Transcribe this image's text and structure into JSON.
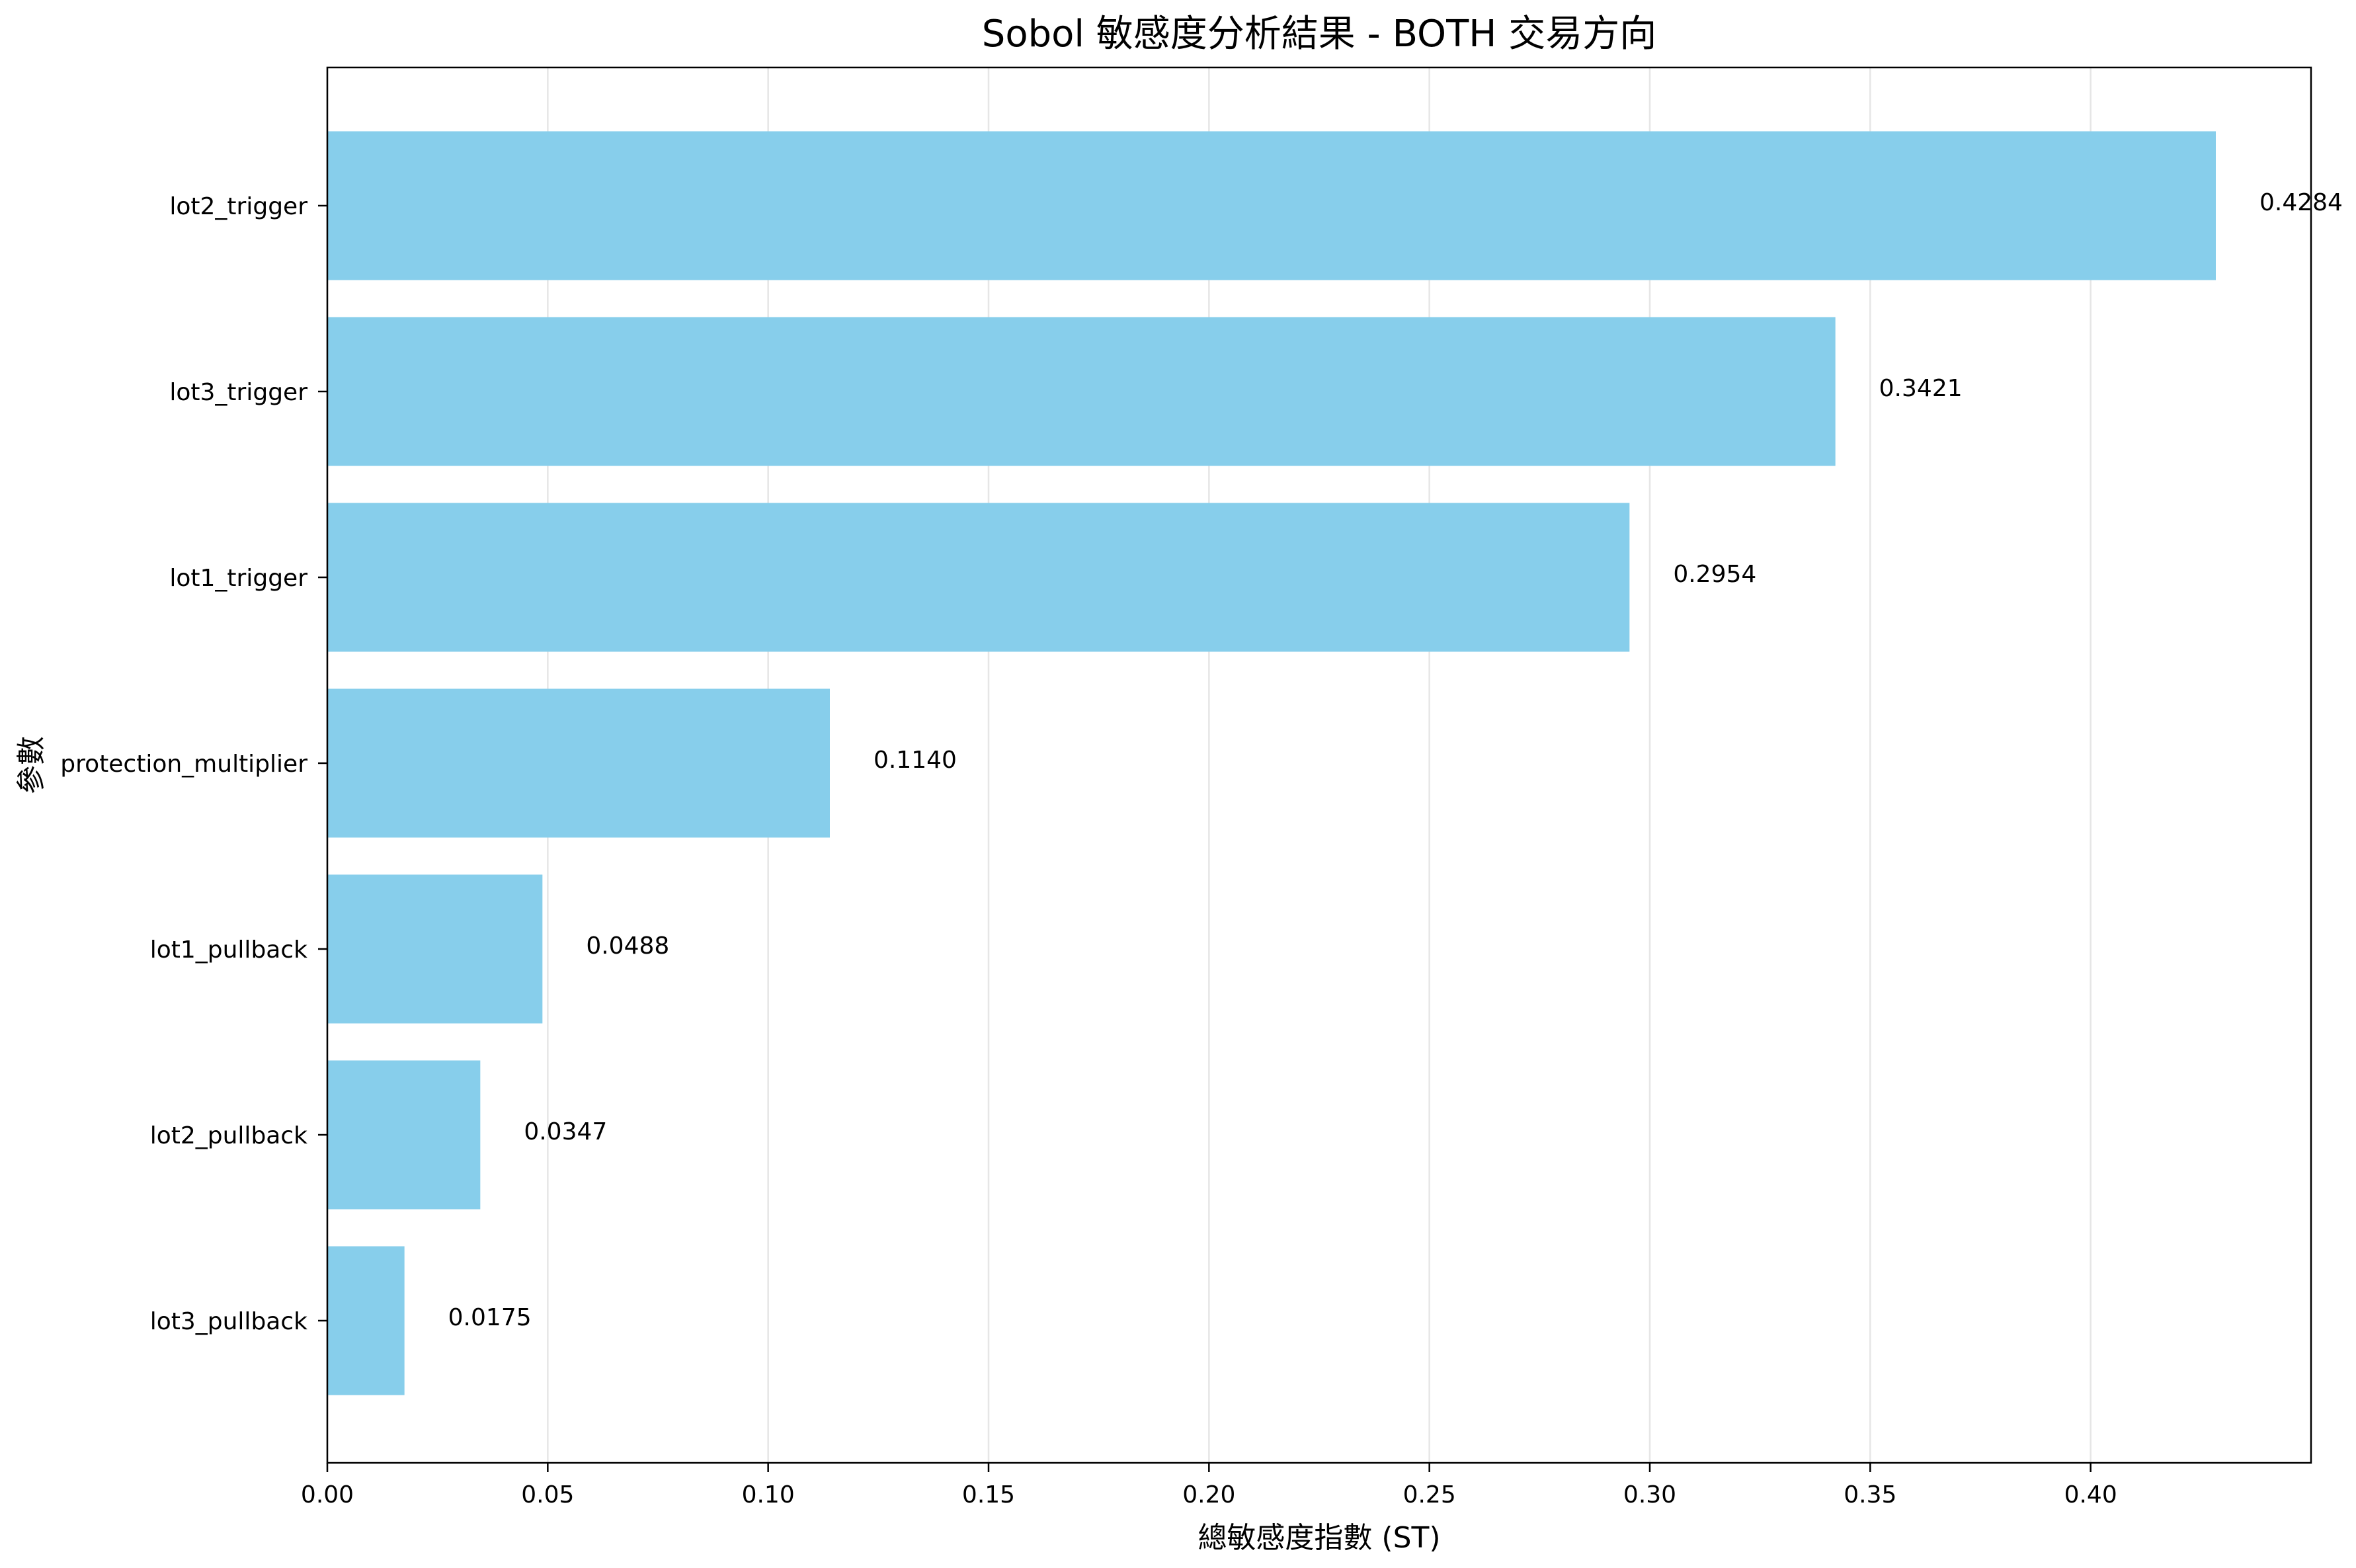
{
  "chart_data": {
    "type": "bar",
    "orientation": "horizontal",
    "title": "Sobol 敏感度分析結果 - BOTH 交易方向",
    "xlabel": "總敏感度指數 (ST)",
    "ylabel": "參數",
    "categories": [
      "lot2_trigger",
      "lot3_trigger",
      "lot1_trigger",
      "protection_multiplier",
      "lot1_pullback",
      "lot2_pullback",
      "lot3_pullback"
    ],
    "values": [
      0.4284,
      0.3421,
      0.2954,
      0.114,
      0.0488,
      0.0347,
      0.0175
    ],
    "value_labels": [
      "0.4284",
      "0.3421",
      "0.2954",
      "0.1140",
      "0.0488",
      "0.0347",
      "0.0175"
    ],
    "xlim": [
      0,
      0.45
    ],
    "xticks": [
      0.0,
      0.05,
      0.1,
      0.15,
      0.2,
      0.25,
      0.3,
      0.35,
      0.4
    ],
    "xtick_labels": [
      "0.00",
      "0.05",
      "0.10",
      "0.15",
      "0.20",
      "0.25",
      "0.30",
      "0.35",
      "0.40"
    ],
    "grid": "vertical",
    "bar_color": "#87CEEB",
    "grid_color": "#e6e6e6"
  }
}
